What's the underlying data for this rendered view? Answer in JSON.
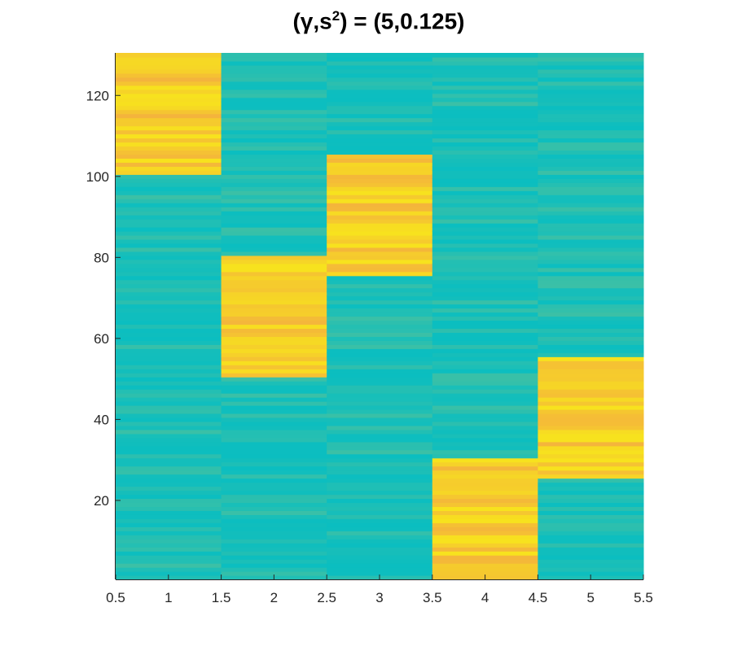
{
  "title": {
    "prefix": "(",
    "gamma": "γ",
    "comma": ",s",
    "sup": "2",
    "suffix": ") = (5,0.125)"
  },
  "colors": {
    "low": "#0bbec0",
    "mid": "#3cc0a6",
    "high": "#f7e21e",
    "orange": "#f4b43c",
    "axis": "#262626"
  },
  "chart_data": {
    "type": "heatmap",
    "title": "(γ,s²) = (5,0.125)",
    "xlabel": "",
    "ylabel": "",
    "xlim": [
      0.5,
      5.5
    ],
    "ylim": [
      0.5,
      130.5
    ],
    "x_ticks": [
      0.5,
      1,
      1.5,
      2,
      2.5,
      3,
      3.5,
      4,
      4.5,
      5,
      5.5
    ],
    "x_tick_labels": [
      "0.5",
      "1",
      "1.5",
      "2",
      "2.5",
      "3",
      "3.5",
      "4",
      "4.5",
      "5",
      "5.5"
    ],
    "y_ticks": [
      20,
      40,
      60,
      80,
      100,
      120
    ],
    "y_tick_labels": [
      "20",
      "40",
      "60",
      "80",
      "100",
      "120"
    ],
    "columns": [
      1,
      2,
      3,
      4,
      5
    ],
    "rows": 130,
    "high_blocks": [
      {
        "column": 1,
        "row_start": 101,
        "row_end": 130
      },
      {
        "column": 2,
        "row_start": 51,
        "row_end": 80
      },
      {
        "column": 3,
        "row_start": 76,
        "row_end": 105
      },
      {
        "column": 4,
        "row_start": 1,
        "row_end": 30
      },
      {
        "column": 5,
        "row_start": 26,
        "row_end": 55
      }
    ],
    "low_value_range": [
      0.0,
      0.2
    ],
    "high_value_range": [
      0.75,
      1.0
    ],
    "colormap": "parula",
    "grid": false
  }
}
